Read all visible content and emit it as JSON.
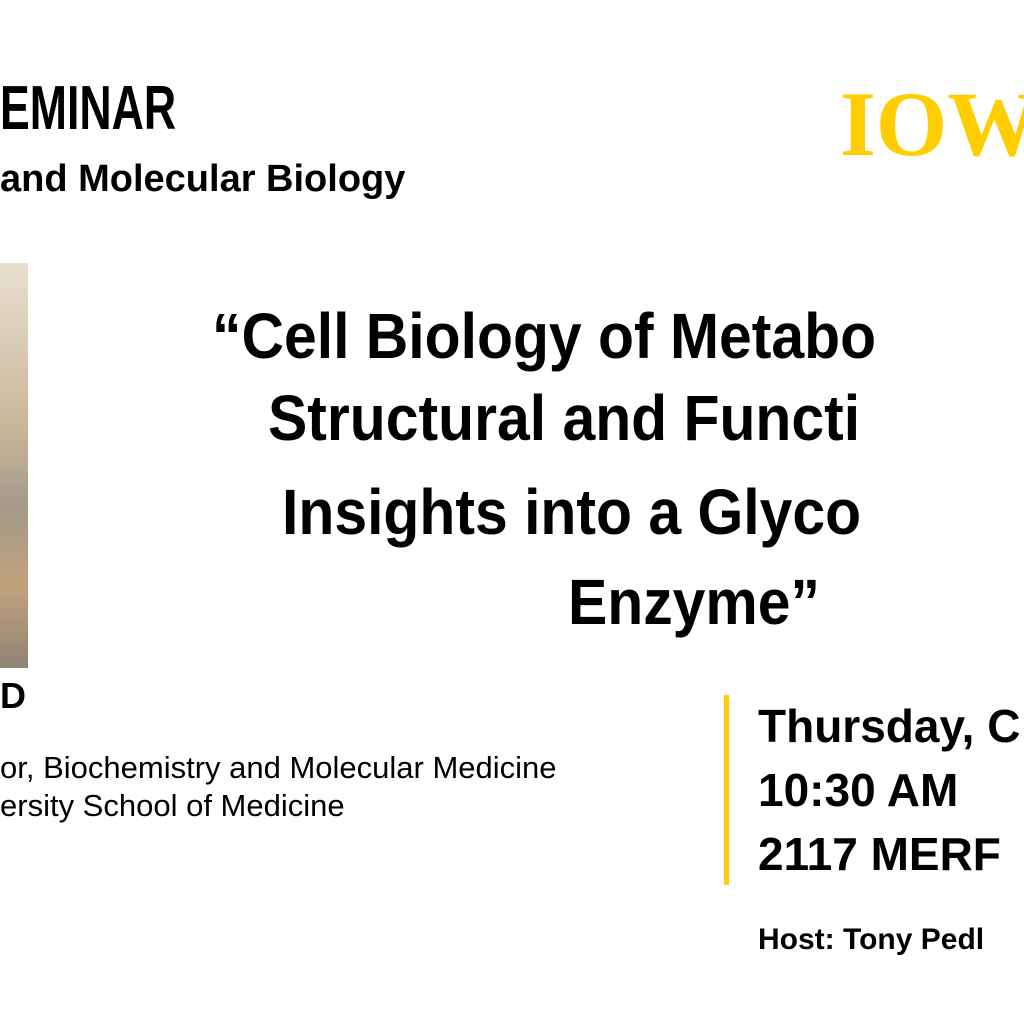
{
  "header": {
    "title": "EMINAR",
    "subtitle": "and Molecular Biology",
    "logo": "IOW"
  },
  "talk": {
    "title_lines": [
      "“Cell Biology of Metabo",
      "Structural and Functi",
      "Insights into a Glyco",
      "Enzyme”"
    ]
  },
  "speaker": {
    "name": "D",
    "position": "or, Biochemistry and Molecular Medicine",
    "affiliation": "ersity School of Medicine"
  },
  "event": {
    "date": "Thursday, C",
    "time": "10:30 AM",
    "location": "2117 MERF",
    "host": "Host: Tony Pedl"
  }
}
